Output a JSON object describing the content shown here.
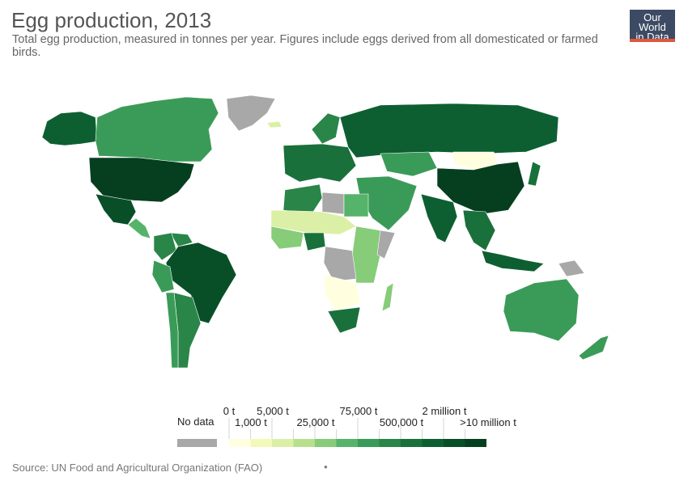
{
  "title": "Egg production, 2013",
  "subtitle": "Total egg production, measured in tonnes per year. Figures include eggs derived from all domesticated or farmed birds.",
  "logo": {
    "line1": "Our World",
    "line2": "in Data"
  },
  "source": "Source: UN Food and Agricultural Organization (FAO)",
  "legend": {
    "no_data_label": "No data",
    "no_data_color": "#a8a8a8",
    "bins": [
      {
        "color": "#ffffe0"
      },
      {
        "color": "#f3f9b9"
      },
      {
        "color": "#dcefa6"
      },
      {
        "color": "#b6e08d"
      },
      {
        "color": "#86cc79"
      },
      {
        "color": "#56b36a"
      },
      {
        "color": "#3a9b58"
      },
      {
        "color": "#2a8548"
      },
      {
        "color": "#19703b"
      },
      {
        "color": "#0d5f32"
      },
      {
        "color": "#084f28"
      },
      {
        "color": "#063f1f"
      }
    ],
    "upper_labels": [
      "0 t",
      "5,000 t",
      "75,000 t",
      "2 million t"
    ],
    "lower_labels": [
      "1,000 t",
      "25,000 t",
      "500,000 t",
      ">10 million t"
    ]
  },
  "map": {
    "regions": [
      {
        "name": "Alaska",
        "color": "#0d5f32"
      },
      {
        "name": "Canada",
        "color": "#3a9b58"
      },
      {
        "name": "Greenland",
        "color": "#a8a8a8"
      },
      {
        "name": "United States",
        "color": "#063f1f"
      },
      {
        "name": "Mexico",
        "color": "#084f28"
      },
      {
        "name": "Central America",
        "color": "#56b36a"
      },
      {
        "name": "Brazil",
        "color": "#084f28"
      },
      {
        "name": "Colombia",
        "color": "#2a8548"
      },
      {
        "name": "Venezuela",
        "color": "#2a8548"
      },
      {
        "name": "Peru",
        "color": "#3a9b58"
      },
      {
        "name": "Argentina",
        "color": "#2a8548"
      },
      {
        "name": "Chile",
        "color": "#3a9b58"
      },
      {
        "name": "Russia",
        "color": "#0d5f32"
      },
      {
        "name": "Europe",
        "color": "#19703b"
      },
      {
        "name": "Scandinavia",
        "color": "#2a8548"
      },
      {
        "name": "Mongolia",
        "color": "#ffffe0"
      },
      {
        "name": "China",
        "color": "#063f1f"
      },
      {
        "name": "India",
        "color": "#0d5f32"
      },
      {
        "name": "Kazakhstan",
        "color": "#3a9b58"
      },
      {
        "name": "Middle East",
        "color": "#3a9b58"
      },
      {
        "name": "Japan",
        "color": "#19703b"
      },
      {
        "name": "Southeast Asia",
        "color": "#19703b"
      },
      {
        "name": "Indonesia",
        "color": "#0d5f32"
      },
      {
        "name": "Papua New Guinea",
        "color": "#a8a8a8"
      },
      {
        "name": "Australia",
        "color": "#3a9b58"
      },
      {
        "name": "New Zealand",
        "color": "#3a9b58"
      },
      {
        "name": "North Africa",
        "color": "#2a8548"
      },
      {
        "name": "Libya",
        "color": "#a8a8a8"
      },
      {
        "name": "Egypt",
        "color": "#56b36a"
      },
      {
        "name": "Sahel",
        "color": "#dcefa6"
      },
      {
        "name": "West Africa",
        "color": "#86cc79"
      },
      {
        "name": "Nigeria",
        "color": "#19703b"
      },
      {
        "name": "DR Congo",
        "color": "#a8a8a8"
      },
      {
        "name": "East Africa",
        "color": "#86cc79"
      },
      {
        "name": "Somalia",
        "color": "#a8a8a8"
      },
      {
        "name": "Southern Africa",
        "color": "#ffffe0"
      },
      {
        "name": "South Africa",
        "color": "#19703b"
      },
      {
        "name": "Madagascar",
        "color": "#86cc79"
      },
      {
        "name": "Iceland",
        "color": "#dcefa6"
      }
    ]
  }
}
